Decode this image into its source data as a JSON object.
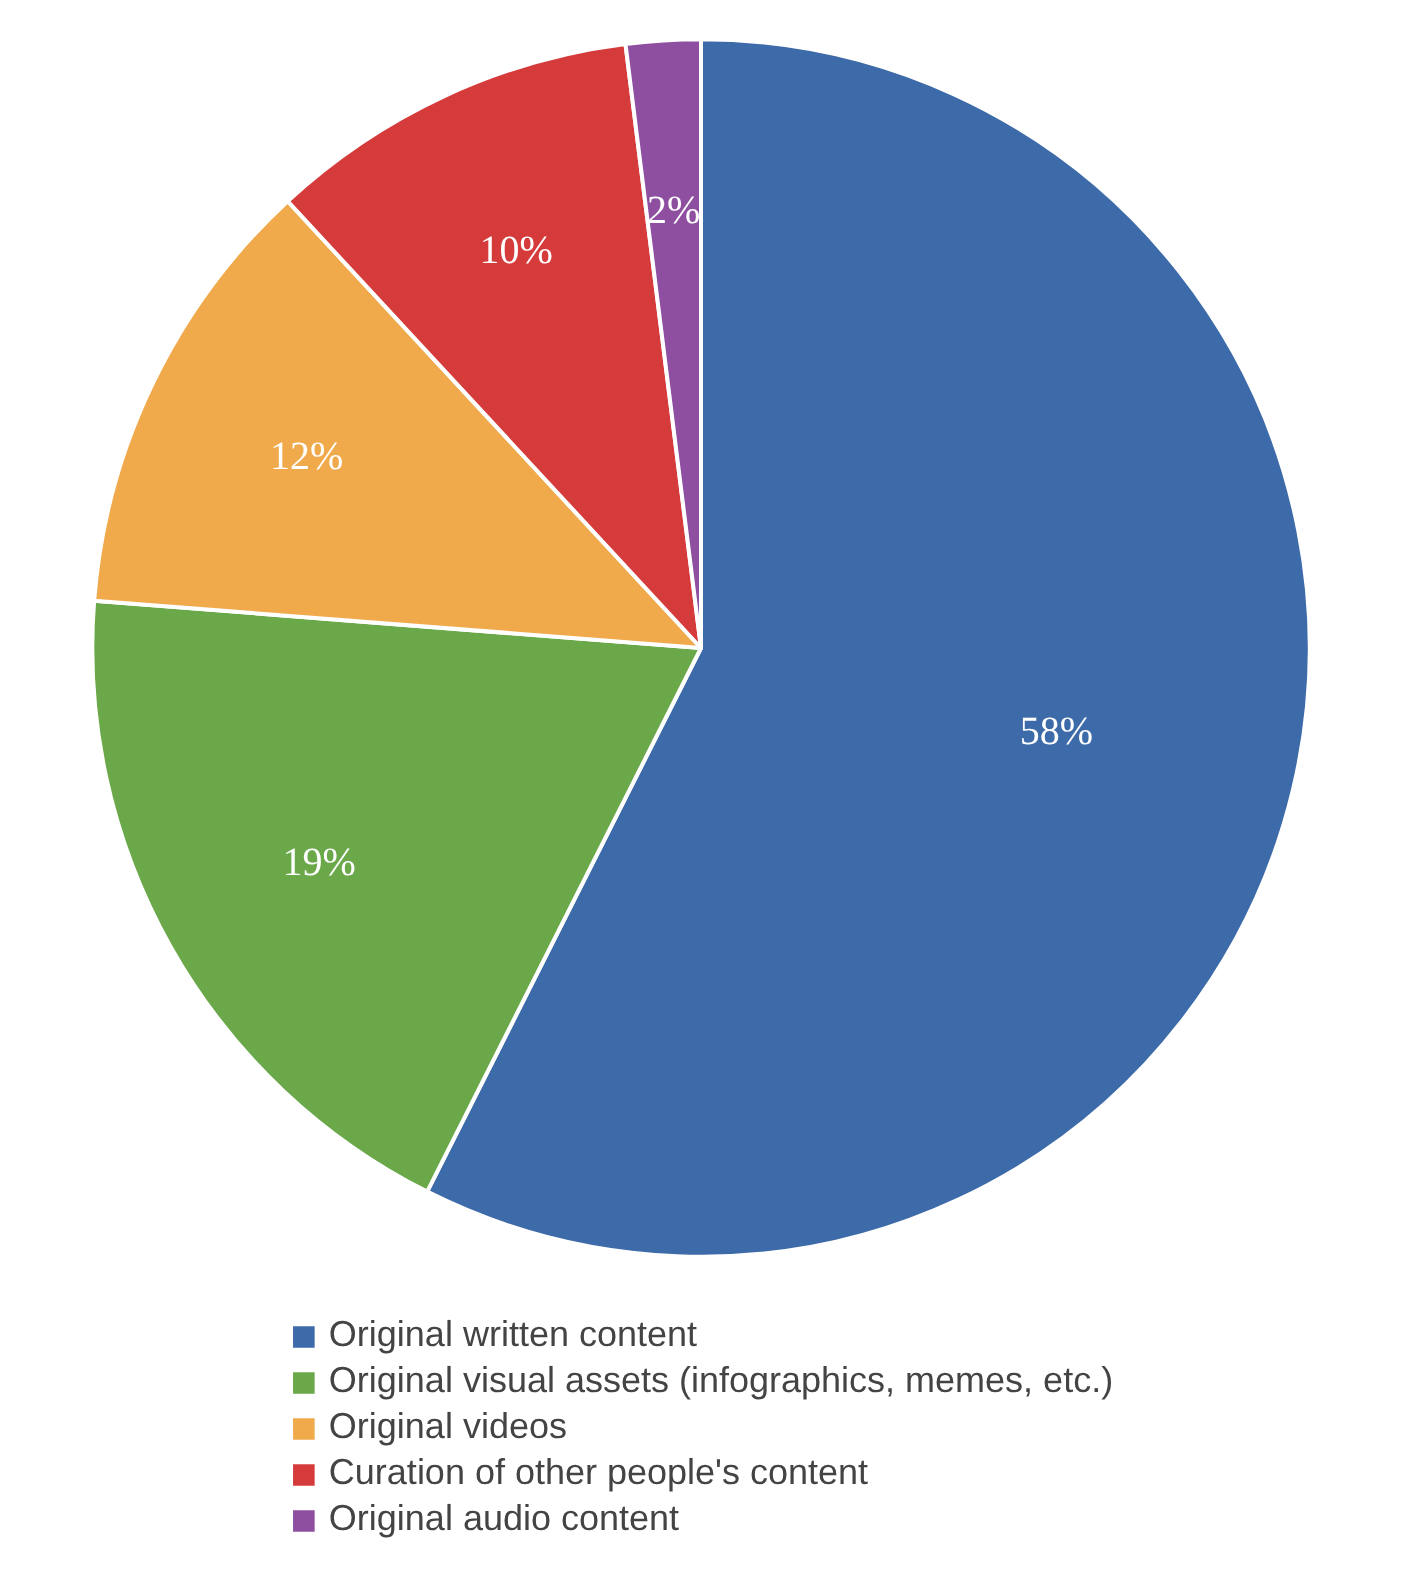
{
  "chart_data": {
    "type": "pie",
    "categories": [
      "Original written content",
      "Original visual assets (infographics, memes, etc.)",
      "Original videos",
      "Curation of other people's content",
      "Original audio content"
    ],
    "values": [
      58,
      19,
      12,
      10,
      2
    ],
    "colors": [
      "#3d6aa8",
      "#6aa84a",
      "#f0aa4c",
      "#d63b3b",
      "#8e4fa0"
    ],
    "value_labels": [
      "58%",
      "19%",
      "12%",
      "10%",
      "2%"
    ],
    "legend": "bottom"
  }
}
